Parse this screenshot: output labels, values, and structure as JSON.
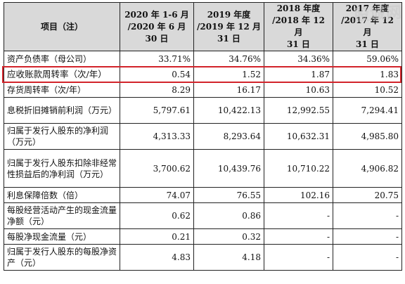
{
  "table": {
    "header": {
      "col0": [
        "项目（注）"
      ],
      "col1": [
        "2020 年 1-6 月",
        "/2020 年 6 月",
        "30 日"
      ],
      "col2": [
        "2019 年度",
        "/2019 年 12 月",
        "31 日"
      ],
      "col3": [
        "2018 年度",
        "/2018 年 12 月",
        "31 日"
      ],
      "col4": [
        "2017 年度",
        "/2017 年 12 月",
        "31 日"
      ]
    },
    "rows": [
      {
        "label": "资产负债率（母公司）",
        "values": [
          "33.71%",
          "34.76%",
          "34.36%",
          "59.06%"
        ]
      },
      {
        "label": "应收账款周转率（次/年）",
        "values": [
          "0.54",
          "1.52",
          "1.87",
          "1.83"
        ]
      },
      {
        "label": "存货周转率（次/年）",
        "values": [
          "8.29",
          "16.17",
          "10.63",
          "10.52"
        ]
      },
      {
        "label": "息税折旧摊销前利润（万元）",
        "values": [
          "5,797.61",
          "10,422.13",
          "12,992.55",
          "7,294.41"
        ]
      },
      {
        "label": "归属于发行人股东的净利润（万元）",
        "values": [
          "4,313.33",
          "8,293.64",
          "10,632.31",
          "4,985.80"
        ]
      },
      {
        "label": "归属于发行人股东扣除非经常性损益后的净利润（万元）",
        "values": [
          "3,700.62",
          "10,439.76",
          "10,710.22",
          "4,906.82"
        ]
      },
      {
        "label": "利息保障倍数（倍）",
        "values": [
          "74.07",
          "76.55",
          "102.16",
          "20.75"
        ]
      },
      {
        "label": "每股经营活动产生的现金流量净额（元）",
        "values": [
          "0.62",
          "0.86",
          "-",
          "-"
        ]
      },
      {
        "label": "每股净现金流量（元）",
        "values": [
          "0.21",
          "0.32",
          "-",
          "-"
        ]
      },
      {
        "label": "归属于发行人股东的每股净资产（元）",
        "values": [
          "4.83",
          "4.18",
          "-",
          "-"
        ]
      }
    ]
  },
  "watermark": "股城网",
  "colors": {
    "header_bg": "#d9d9d9",
    "highlight_border": "#d2232a"
  }
}
